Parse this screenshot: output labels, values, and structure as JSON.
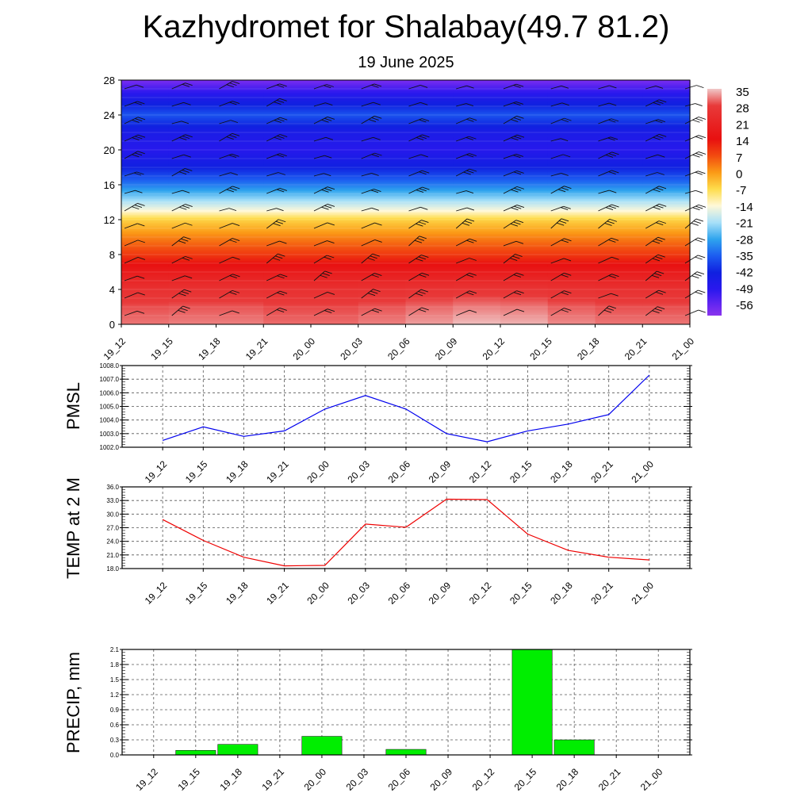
{
  "title": "Kazhydromet for Shalabay(49.7 81.2)",
  "subtitle": "19 June 2025",
  "chart_data": [
    {
      "type": "heatmap",
      "name": "cross-section",
      "x_ticks": [
        "19_12",
        "19_15",
        "19_18",
        "19_21",
        "20_00",
        "20_03",
        "20_06",
        "20_09",
        "20_12",
        "20_15",
        "20_18",
        "20_21",
        "21_00"
      ],
      "y_ticks": [
        "0",
        "4",
        "8",
        "12",
        "16",
        "20",
        "24",
        "28"
      ],
      "ylim": [
        0,
        28
      ],
      "colorbar_labels": [
        "35",
        "28",
        "21",
        "14",
        "7",
        "0",
        "-7",
        "-14",
        "-21",
        "-28",
        "-35",
        "-42",
        "-49",
        "-56"
      ],
      "colorbar_stops": [
        {
          "v": 35,
          "c": "#f0c8c8"
        },
        {
          "v": 28,
          "c": "#e83a3a"
        },
        {
          "v": 14,
          "c": "#e81010"
        },
        {
          "v": 7,
          "c": "#f24a10"
        },
        {
          "v": 0,
          "c": "#fb9a16"
        },
        {
          "v": -7,
          "c": "#fedc4c"
        },
        {
          "v": -14,
          "c": "#fff8d8"
        },
        {
          "v": -21,
          "c": "#a8e0f8"
        },
        {
          "v": -28,
          "c": "#2fa4ee"
        },
        {
          "v": -35,
          "c": "#1c5cf0"
        },
        {
          "v": -42,
          "c": "#1020e0"
        },
        {
          "v": -49,
          "c": "#2a18ee"
        },
        {
          "v": -56,
          "c": "#6a28f0"
        },
        {
          "v": -60,
          "c": "#8a34ee"
        }
      ],
      "profile_levels": [
        0,
        2,
        4,
        6,
        8,
        10,
        12,
        13,
        14,
        16,
        18,
        20,
        22,
        24,
        26,
        28
      ],
      "profile_values": [
        31,
        29,
        25,
        18,
        9,
        2,
        -6,
        -14,
        -20,
        -32,
        -42,
        -48,
        -45,
        -36,
        -46,
        -58
      ],
      "x_anomaly": [
        0,
        0,
        1,
        0,
        -1,
        0,
        1,
        3,
        4,
        2,
        0,
        0,
        0
      ],
      "grid": false
    },
    {
      "type": "line",
      "name": "PMSL",
      "ylabel": "PMSL",
      "categories": [
        "19_12",
        "19_15",
        "19_18",
        "19_21",
        "20_00",
        "20_03",
        "20_06",
        "20_09",
        "20_12",
        "20_15",
        "20_18",
        "20_21",
        "21_00"
      ],
      "values": [
        1002.5,
        1003.5,
        1002.8,
        1003.2,
        1004.8,
        1005.8,
        1004.8,
        1003.0,
        1002.4,
        1003.2,
        1003.7,
        1004.4,
        1007.3
      ],
      "ylim": [
        1002.0,
        1008.0
      ],
      "y_ticks": [
        "1002.0",
        "1003.0",
        "1004.0",
        "1005.0",
        "1006.0",
        "1007.0",
        "1008.0"
      ],
      "color": "#0000ee",
      "grid": true
    },
    {
      "type": "line",
      "name": "TEMP",
      "ylabel": "TEMP at 2 M",
      "categories": [
        "19_12",
        "19_15",
        "19_18",
        "19_21",
        "20_00",
        "20_03",
        "20_06",
        "20_09",
        "20_12",
        "20_15",
        "20_18",
        "20_21",
        "21_00"
      ],
      "values": [
        28.8,
        24.2,
        20.5,
        18.6,
        18.7,
        27.8,
        27.1,
        33.3,
        33.2,
        25.6,
        22.0,
        20.5,
        19.9
      ],
      "ylim": [
        18.0,
        36.0
      ],
      "y_ticks": [
        "18.0",
        "21.0",
        "24.0",
        "27.0",
        "30.0",
        "33.0",
        "36.0"
      ],
      "color": "#ee0000",
      "grid": true
    },
    {
      "type": "bar",
      "name": "PRECIP",
      "ylabel": "PRECIP, mm",
      "categories": [
        "19_12",
        "19_15",
        "19_18",
        "19_21",
        "20_00",
        "20_03",
        "20_06",
        "20_09",
        "20_12",
        "20_15",
        "20_18",
        "20_21",
        "21_00"
      ],
      "values": [
        0,
        0.09,
        0.21,
        0,
        0.37,
        0,
        0.11,
        0,
        0,
        2.1,
        0.3,
        0,
        0
      ],
      "ylim": [
        0,
        2.1
      ],
      "y_ticks": [
        "0.0",
        "0.3",
        "0.6",
        "0.9",
        "1.2",
        "1.5",
        "1.8",
        "2.1"
      ],
      "color": "#00ee00",
      "grid": true
    }
  ]
}
